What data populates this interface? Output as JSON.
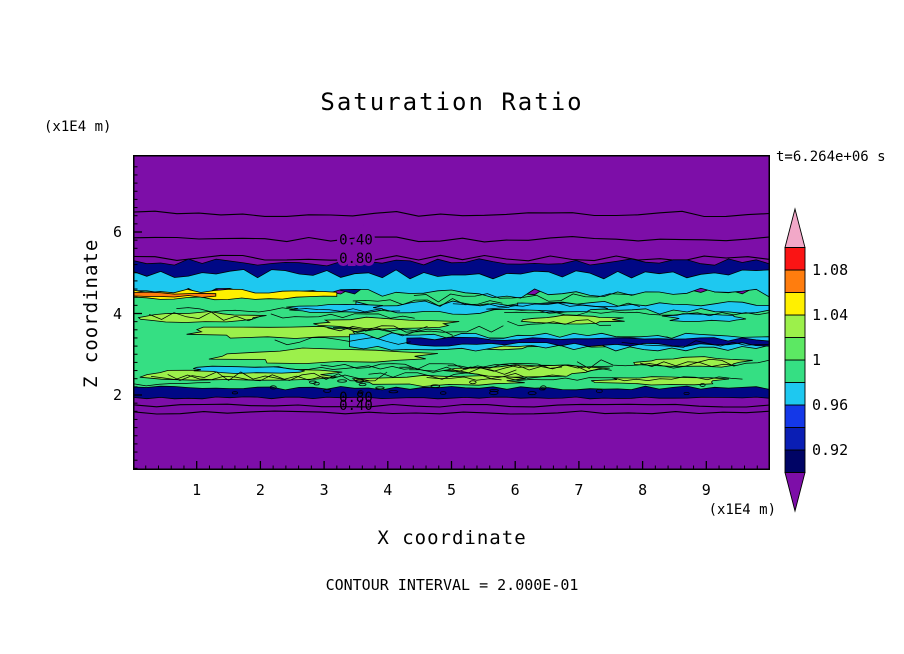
{
  "title": "Saturation Ratio",
  "annotations": {
    "time": "t=6.264e+06 s",
    "contour_interval": "CONTOUR INTERVAL = 2.000E-01"
  },
  "axes": {
    "x_label": "X coordinate",
    "x_unit": "(x1E4 m)",
    "x_ticks": [
      "1",
      "2",
      "3",
      "4",
      "5",
      "6",
      "7",
      "8",
      "9"
    ],
    "x_tick_values": [
      1,
      2,
      3,
      4,
      5,
      6,
      7,
      8,
      9
    ],
    "x_range": [
      0,
      10
    ],
    "z_label": "Z coordinate",
    "z_unit": "(x1E4 m)",
    "z_ticks": [
      "2",
      "4",
      "6"
    ],
    "z_tick_values": [
      2,
      4,
      6
    ],
    "z_range": [
      0,
      7.7
    ]
  },
  "colorbar": {
    "labels": [
      {
        "text": "1.08",
        "value": 1.08
      },
      {
        "text": "1.04",
        "value": 1.04
      },
      {
        "text": "1",
        "value": 1.0
      },
      {
        "text": "0.96",
        "value": 0.96
      },
      {
        "text": "0.92",
        "value": 0.92
      }
    ],
    "segments": [
      {
        "min": 0.9,
        "max": 0.92,
        "color": "#000465"
      },
      {
        "min": 0.92,
        "max": 0.94,
        "color": "#0A1EB4"
      },
      {
        "min": 0.94,
        "max": 0.96,
        "color": "#1438E8"
      },
      {
        "min": 0.96,
        "max": 0.98,
        "color": "#1EC8F0"
      },
      {
        "min": 0.98,
        "max": 1.0,
        "color": "#35DF83"
      },
      {
        "min": 1.0,
        "max": 1.02,
        "color": "#5CE863"
      },
      {
        "min": 1.02,
        "max": 1.04,
        "color": "#9CF04B"
      },
      {
        "min": 1.04,
        "max": 1.06,
        "color": "#FFF000"
      },
      {
        "min": 1.06,
        "max": 1.08,
        "color": "#FF7D0E"
      },
      {
        "min": 1.08,
        "max": 1.1,
        "color": "#FA1414"
      }
    ],
    "above_color": "#F2A8C8",
    "below_color": "#7D0EA8"
  },
  "chart_data": {
    "type": "heatmap",
    "title": "Saturation Ratio",
    "xlabel": "X coordinate (x1E4 m)",
    "ylabel": "Z coordinate (x1E4 m)",
    "x_range": [
      0,
      10
    ],
    "z_range": [
      0,
      7.7
    ],
    "time_annotation": "t=6.264e+06 s",
    "contour_interval": 0.2,
    "colorbar_levels": [
      0.92,
      0.96,
      1.0,
      1.04,
      1.08
    ],
    "colors": {
      "purple": "#7D0EA8",
      "navy": "#000885",
      "blue": "#1438E8",
      "cyan": "#1EC8F0",
      "green": "#35DF83",
      "lightgreen": "#9CF04B",
      "yellow": "#FFF000",
      "orange": "#FF7D0E",
      "red": "#FA1414",
      "pink": "#F2A8C8",
      "line": "#000000"
    },
    "field": {
      "description": "Dry (purple, ratio < 0.9) domain with a saturated horizontal layer between z ~ 2 and z ~ 5.2; line contours at interval 0.2 in the unsaturated zones.",
      "label_x": 3.5,
      "upper_lines": [
        {
          "z": 6.45
        },
        {
          "z": 5.82,
          "label": "0.40"
        },
        {
          "z": 5.36,
          "label": "0.80"
        }
      ],
      "lower_lines": [
        {
          "z": 1.74
        },
        {
          "z": 1.57
        }
      ],
      "lower_labels": [
        {
          "z": 1.95,
          "label": "0.80"
        },
        {
          "z": 1.76,
          "label": "0.40"
        }
      ],
      "bands_under": [
        {
          "name": "green-main",
          "color_key": "green",
          "x0": 0,
          "x1": 10,
          "z_top": 4.58,
          "z_bot": 1.98,
          "amp_top": 5,
          "amp_bot": 2,
          "seed": 3
        },
        {
          "name": "navy-top-layer",
          "color_key": "navy",
          "x0": 0,
          "x1": 10,
          "z_top": 5.25,
          "z_bot": 4.62,
          "amp_top": 4,
          "amp_bot": 6,
          "seed": 4
        },
        {
          "name": "cyan-top-layer",
          "color_key": "cyan",
          "x0": 0,
          "x1": 10,
          "z_top": 4.97,
          "z_bot": 4.5,
          "amp_top": 5,
          "amp_bot": 5,
          "seed": 5
        },
        {
          "name": "cyan-right-streak",
          "color_key": "cyan",
          "x0": 3.5,
          "x1": 10,
          "z_top": 4.25,
          "z_bot": 4.05,
          "amp_top": 3,
          "amp_bot": 3,
          "seed": 6
        },
        {
          "name": "yellow-left-streak",
          "color_key": "yellow",
          "x0": 0,
          "x1": 3.2,
          "z_top": 4.55,
          "z_bot": 4.38,
          "amp_top": 2,
          "amp_bot": 2,
          "seed": 7
        },
        {
          "name": "orange-left-streak",
          "color_key": "orange",
          "x0": 0,
          "x1": 1.3,
          "z_top": 4.5,
          "z_bot": 4.42,
          "amp_top": 1,
          "amp_bot": 1,
          "seed": 8
        }
      ],
      "patches": [
        {
          "cx": 1.0,
          "cz": 3.9,
          "rx": 1.0,
          "rz": 0.13,
          "color_key": "lightgreen"
        },
        {
          "cx": 2.3,
          "cz": 3.55,
          "rx": 1.3,
          "rz": 0.15,
          "color_key": "lightgreen"
        },
        {
          "cx": 3.9,
          "cz": 3.75,
          "rx": 1.1,
          "rz": 0.13,
          "color_key": "lightgreen"
        },
        {
          "cx": 3.0,
          "cz": 2.95,
          "rx": 1.6,
          "rz": 0.17,
          "color_key": "lightgreen"
        },
        {
          "cx": 5.6,
          "cz": 3.25,
          "rx": 1.0,
          "rz": 0.13,
          "color_key": "lightgreen"
        },
        {
          "cx": 1.7,
          "cz": 2.5,
          "rx": 1.4,
          "rz": 0.15,
          "color_key": "lightgreen"
        },
        {
          "cx": 4.8,
          "cz": 2.35,
          "rx": 1.2,
          "rz": 0.12,
          "color_key": "lightgreen"
        },
        {
          "cx": 6.9,
          "cz": 3.85,
          "rx": 0.7,
          "rz": 0.1,
          "color_key": "lightgreen"
        },
        {
          "cx": 7.8,
          "cz": 3.3,
          "rx": 1.0,
          "rz": 0.12,
          "color_key": "lightgreen"
        },
        {
          "cx": 8.8,
          "cz": 2.8,
          "rx": 0.8,
          "rz": 0.12,
          "color_key": "lightgreen"
        },
        {
          "cx": 6.2,
          "cz": 2.6,
          "rx": 1.1,
          "rz": 0.14,
          "color_key": "lightgreen"
        },
        {
          "cx": 8.3,
          "cz": 2.35,
          "rx": 0.9,
          "rz": 0.1,
          "color_key": "lightgreen"
        },
        {
          "cx": 3.2,
          "cz": 4.12,
          "rx": 0.8,
          "rz": 0.1,
          "color_key": "cyan"
        },
        {
          "cx": 6.6,
          "cz": 4.15,
          "rx": 0.9,
          "rz": 0.1,
          "color_key": "cyan"
        },
        {
          "cx": 1.8,
          "cz": 2.62,
          "rx": 0.9,
          "rz": 0.08,
          "color_key": "cyan"
        },
        {
          "cx": 9.0,
          "cz": 3.9,
          "rx": 0.6,
          "rz": 0.09,
          "color_key": "cyan"
        }
      ],
      "bands_over": [
        {
          "name": "cyan-mid-streak",
          "color_key": "cyan",
          "x0": 3.4,
          "x1": 10,
          "z_top": 3.45,
          "z_bot": 3.15,
          "amp_top": 3,
          "amp_bot": 3,
          "seed": 9
        },
        {
          "name": "navy-mid-streak",
          "color_key": "navy",
          "x0": 4.3,
          "x1": 10,
          "z_top": 3.37,
          "z_bot": 3.24,
          "amp_top": 2,
          "amp_bot": 2,
          "seed": 10
        },
        {
          "name": "navy-bottom-layer",
          "color_key": "navy",
          "x0": 0,
          "x1": 10,
          "z_top": 2.17,
          "z_bot": 1.93,
          "amp_top": 2,
          "amp_bot": 1,
          "seed": 12
        }
      ],
      "squiggles": {
        "count": 26,
        "z_min": 2.1,
        "z_max": 4.45,
        "seed": 11
      },
      "speckles": {
        "count": 22,
        "z_min": 2.02,
        "z_max": 2.35,
        "seed": 5
      }
    }
  }
}
